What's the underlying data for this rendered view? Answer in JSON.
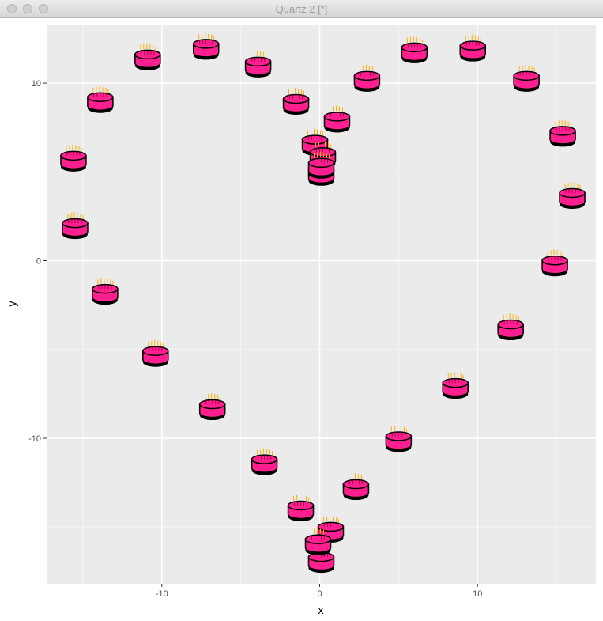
{
  "window": {
    "title": "Quartz 2 [*]"
  },
  "colors": {
    "panel": "#ebebeb",
    "grid": "#ffffff",
    "cake": "#ff1f8e",
    "candle_flame": "#ffb000"
  },
  "chart_data": {
    "type": "scatter",
    "marker": "birthday-cake-icon",
    "title": "",
    "xlabel": "x",
    "ylabel": "y",
    "xlim": [
      -17.3,
      17.5
    ],
    "ylim": [
      -18.2,
      13.3
    ],
    "xticks": [
      -10,
      0,
      10
    ],
    "yticks": [
      -10,
      0,
      10
    ],
    "grid": true,
    "legend": "none",
    "points": [
      {
        "x": -15.6,
        "y": 5.6
      },
      {
        "x": -15.5,
        "y": 1.8
      },
      {
        "x": -13.9,
        "y": 8.9
      },
      {
        "x": -13.6,
        "y": -1.9
      },
      {
        "x": -10.9,
        "y": 11.3
      },
      {
        "x": -10.4,
        "y": -5.4
      },
      {
        "x": -7.2,
        "y": 11.9
      },
      {
        "x": -6.8,
        "y": -8.4
      },
      {
        "x": -3.9,
        "y": 10.9
      },
      {
        "x": -3.5,
        "y": -11.5
      },
      {
        "x": -1.5,
        "y": 8.8
      },
      {
        "x": -1.2,
        "y": -14.1
      },
      {
        "x": -0.3,
        "y": 6.5
      },
      {
        "x": 0.2,
        "y": 5.8
      },
      {
        "x": 0.1,
        "y": 4.8
      },
      {
        "x": 0.1,
        "y": 5.2
      },
      {
        "x": 1.1,
        "y": 7.8
      },
      {
        "x": 0.7,
        "y": -15.3
      },
      {
        "x": 0.1,
        "y": -17.0
      },
      {
        "x": -0.1,
        "y": -16.0
      },
      {
        "x": 3.0,
        "y": 10.1
      },
      {
        "x": 2.3,
        "y": -12.9
      },
      {
        "x": 5.0,
        "y": -10.2
      },
      {
        "x": 6.0,
        "y": 11.7
      },
      {
        "x": 8.6,
        "y": -7.2
      },
      {
        "x": 9.7,
        "y": 11.8
      },
      {
        "x": 12.1,
        "y": -3.9
      },
      {
        "x": 13.1,
        "y": 10.1
      },
      {
        "x": 14.9,
        "y": -0.3
      },
      {
        "x": 15.4,
        "y": 7.0
      },
      {
        "x": 16.0,
        "y": 3.5
      }
    ]
  }
}
